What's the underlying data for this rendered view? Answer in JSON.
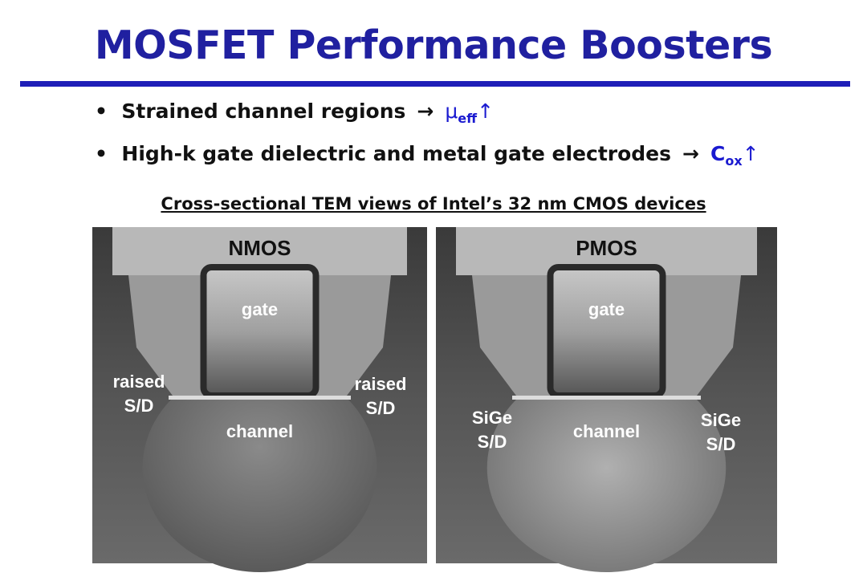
{
  "title": "MOSFET Performance Boosters",
  "implies": "→",
  "increase": "↑",
  "bullets": [
    {
      "text": "Strained channel regions",
      "symbol": "μ",
      "subscript": "eff"
    },
    {
      "text": "High-k gate dielectric and metal gate electrodes",
      "symbol": "C",
      "subscript": "ox"
    }
  ],
  "figure": {
    "caption": "Cross-sectional TEM views of Intel’s 32 nm CMOS devices",
    "panels": [
      {
        "device": "NMOS",
        "gate": "gate",
        "left_sd": [
          "raised",
          "S/D"
        ],
        "channel": "channel",
        "right_sd": [
          "raised",
          "S/D"
        ]
      },
      {
        "device": "PMOS",
        "gate": "gate",
        "left_sd": [
          "SiGe",
          "S/D"
        ],
        "channel": "channel",
        "right_sd": [
          "SiGe",
          "S/D"
        ]
      }
    ]
  }
}
